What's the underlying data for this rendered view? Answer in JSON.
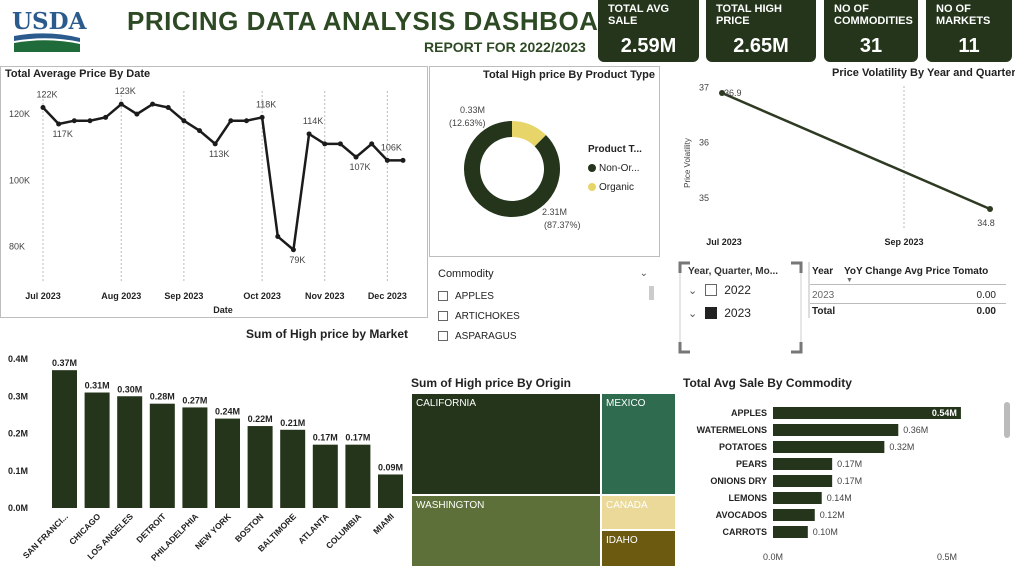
{
  "header": {
    "logo_text": "USDA",
    "title": "PRICING DATA ANALYSIS DASHBOARD",
    "subtitle": "REPORT FOR 2022/2023"
  },
  "kpis": [
    {
      "label": "TOTAL AVG SALE",
      "value": "2.59M"
    },
    {
      "label": "TOTAL HIGH PRICE",
      "value": "2.65M"
    },
    {
      "label": "NO OF COMMODITIES",
      "value": "31"
    },
    {
      "label": "NO OF MARKETS",
      "value": "11"
    }
  ],
  "line_chart": {
    "title": "Total Average Price By Date",
    "xlabel": "Date",
    "yticks": [
      "120K",
      "100K",
      "80K"
    ],
    "xticks": [
      "Jul 2023",
      "Aug 2023",
      "Sep 2023",
      "Oct 2023",
      "Nov 2023",
      "Dec 2023"
    ],
    "labels": [
      "122K",
      "117K",
      "123K",
      "113K",
      "118K",
      "79K",
      "114K",
      "107K",
      "106K"
    ]
  },
  "donut": {
    "title": "Total High price By Product Type",
    "legend_title": "Product T...",
    "legend": [
      "Non-Or...",
      "Organic"
    ],
    "organic_label": "0.33M",
    "organic_pct": "(12.63%)",
    "nonorganic_label": "2.31M",
    "nonorganic_pct": "(87.37%)",
    "colors": {
      "non_organic": "#24351b",
      "organic": "#e8d56a"
    }
  },
  "volatility": {
    "title": "Price Volatility By Year and Quarter",
    "ylabel": "Price Volatility",
    "yticks": [
      "37",
      "36",
      "35"
    ],
    "xticks": [
      "Jul 2023",
      "Sep 2023"
    ],
    "start_label": "36.9",
    "end_label": "34.8"
  },
  "commodity_slicer": {
    "title": "Commodity",
    "items": [
      "APPLES",
      "ARTICHOKES",
      "ASPARAGUS"
    ]
  },
  "year_slicer": {
    "title": "Year, Quarter, Mo...",
    "items": [
      "2022",
      "2023"
    ]
  },
  "yoy_table": {
    "headers": [
      "Year",
      "YoY Change Avg Price Tomato"
    ],
    "rows": [
      {
        "year": "2023",
        "value": "0.00"
      },
      {
        "year": "Total",
        "value": "0.00"
      }
    ]
  },
  "chart_data": [
    {
      "type": "line",
      "title": "Total Average Price By Date",
      "xlabel": "Date",
      "ylabel": "",
      "x": [
        "2023-07-01",
        "2023-07-08",
        "2023-07-15",
        "2023-07-22",
        "2023-07-29",
        "2023-08-05",
        "2023-08-12",
        "2023-08-19",
        "2023-08-26",
        "2023-09-02",
        "2023-09-09",
        "2023-09-16",
        "2023-09-23",
        "2023-09-30",
        "2023-10-07",
        "2023-10-14",
        "2023-10-21",
        "2023-10-28",
        "2023-11-04",
        "2023-11-11",
        "2023-11-18",
        "2023-11-25",
        "2023-12-02",
        "2023-12-09"
      ],
      "values": [
        122,
        117,
        118,
        118,
        119,
        123,
        120,
        123,
        122,
        118,
        115,
        111,
        118,
        118,
        119,
        83,
        79,
        114,
        111,
        111,
        107,
        111,
        106,
        106
      ],
      "ylim": [
        75,
        130
      ]
    },
    {
      "type": "pie",
      "title": "Total High price By Product Type",
      "categories": [
        "Non-Organic",
        "Organic"
      ],
      "values": [
        2.31,
        0.33
      ]
    },
    {
      "type": "line",
      "title": "Price Volatility By Year and Quarter",
      "ylabel": "Price Volatility",
      "x": [
        "Jul 2023",
        "Sep 2023"
      ],
      "values": [
        36.9,
        34.8
      ],
      "ylim": [
        34.6,
        37.1
      ]
    },
    {
      "type": "bar",
      "title": "Sum of High price by Market",
      "categories": [
        "SAN FRANCI...",
        "CHICAGO",
        "LOS ANGELES",
        "DETROIT",
        "PHILADELPHIA",
        "NEW YORK",
        "BOSTON",
        "BALTIMORE",
        "ATLANTA",
        "COLUMBIA",
        "MIAMI"
      ],
      "values": [
        0.37,
        0.31,
        0.3,
        0.28,
        0.27,
        0.24,
        0.22,
        0.21,
        0.17,
        0.17,
        0.09
      ],
      "value_labels": [
        "0.37M",
        "0.31M",
        "0.30M",
        "0.28M",
        "0.27M",
        "0.24M",
        "0.22M",
        "0.21M",
        "0.17M",
        "0.17M",
        "0.09M"
      ],
      "yticks": [
        "0.4M",
        "0.3M",
        "0.2M",
        "0.1M",
        "0.0M"
      ],
      "ylim": [
        0,
        0.4
      ]
    },
    {
      "type": "treemap",
      "title": "Sum of High price By Origin",
      "categories": [
        "CALIFORNIA",
        "WASHINGTON",
        "MEXICO",
        "CANADA",
        "IDAHO"
      ],
      "colors": [
        "#24351b",
        "#5e7039",
        "#2f6b4f",
        "#ead999",
        "#6b5a10"
      ]
    },
    {
      "type": "bar",
      "orientation": "horizontal",
      "title": "Total Avg Sale By Commodity",
      "categories": [
        "APPLES",
        "WATERMELONS",
        "POTATOES",
        "PEARS",
        "ONIONS DRY",
        "LEMONS",
        "AVOCADOS",
        "CARROTS"
      ],
      "values": [
        0.54,
        0.36,
        0.32,
        0.17,
        0.17,
        0.14,
        0.12,
        0.1
      ],
      "value_labels": [
        "0.54M",
        "0.36M",
        "0.32M",
        "0.17M",
        "0.17M",
        "0.14M",
        "0.12M",
        "0.10M"
      ],
      "xticks": [
        "0.0M",
        "0.5M"
      ],
      "xlim": [
        0,
        0.5
      ]
    }
  ]
}
